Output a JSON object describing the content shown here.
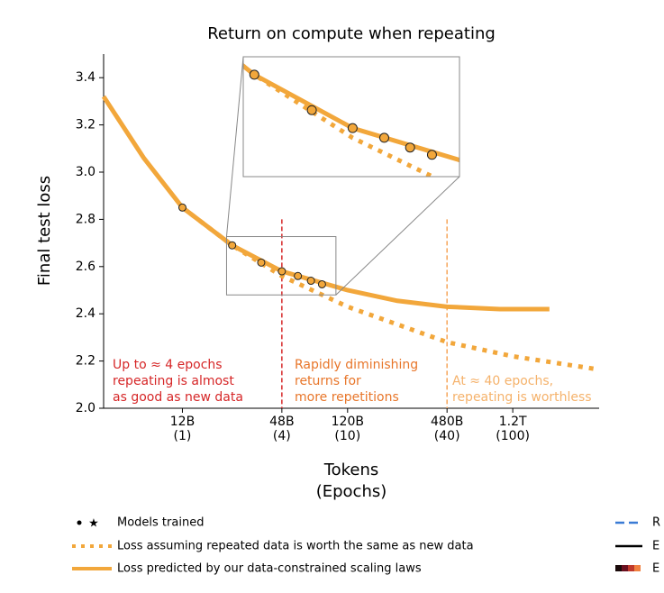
{
  "chart_data": {
    "type": "line",
    "title": "Return on compute when repeating",
    "ylabel": "Final test loss",
    "xlabel": [
      "Tokens",
      "(Epochs)"
    ],
    "xscale": "log",
    "xlim": [
      4000000000,
      4000000000000
    ],
    "ylim": [
      2.0,
      3.5
    ],
    "xticks": [
      {
        "value": 12000000000,
        "label": "12B",
        "epoch_label": "(1)"
      },
      {
        "value": 48000000000,
        "label": "48B",
        "epoch_label": "(4)"
      },
      {
        "value": 120000000000,
        "label": "120B",
        "epoch_label": "(10)"
      },
      {
        "value": 480000000000,
        "label": "480B",
        "epoch_label": "(40)"
      },
      {
        "value": 1200000000000,
        "label": "1.2T",
        "epoch_label": "(100)"
      }
    ],
    "yticks": [
      {
        "value": 2.0,
        "label": "2.0"
      },
      2.2,
      2.4,
      2.6,
      2.8,
      {
        "value": 3.0,
        "label": "3.0"
      },
      3.2,
      3.4
    ],
    "color": "#f2a73b",
    "series": [
      {
        "name": "Loss assuming repeated data is worth the same as new data",
        "style": "dotted",
        "x": [
          12000000000,
          24000000000,
          48000000000,
          120000000000,
          480000000000,
          1200000000000,
          3900000000000
        ],
        "values": [
          2.85,
          2.69,
          2.56,
          2.43,
          2.28,
          2.22,
          2.165
        ]
      },
      {
        "name": "Loss predicted by our data-constrained scaling laws",
        "style": "solid",
        "x": [
          4000000000,
          7000000000,
          12000000000,
          24000000000,
          48000000000,
          120000000000,
          240000000000,
          480000000000,
          1000000000000,
          2000000000000
        ],
        "values": [
          3.32,
          3.06,
          2.85,
          2.69,
          2.58,
          2.5,
          2.455,
          2.43,
          2.42,
          2.42
        ]
      }
    ],
    "points": {
      "name": "Models trained",
      "x": [
        12000000000,
        24000000000,
        36000000000,
        48000000000,
        60000000000,
        72000000000,
        84000000000
      ],
      "values": [
        2.85,
        2.69,
        2.617,
        2.58,
        2.56,
        2.54,
        2.525
      ]
    },
    "vlines": [
      {
        "x": 48000000000,
        "y": 2.8,
        "color": "#d62728"
      },
      {
        "x": 480000000000,
        "y": 2.8,
        "color": "#f5a55a"
      }
    ],
    "zoom": {
      "xlim": [
        22200000000,
        102000000000
      ],
      "ylim": [
        2.48,
        2.727
      ]
    },
    "annotations": [
      {
        "lines": [
          "Up to ≈ 4 epochs",
          "repeating is almost",
          "as good as new data"
        ],
        "color": "#d62728"
      },
      {
        "lines": [
          "Rapidly diminishing",
          "returns for",
          "more repetitions"
        ],
        "color": "#e8762a"
      },
      {
        "lines": [
          "At ≈ 40 epochs,",
          "repeating is worthless"
        ],
        "color": "#f5b26b"
      }
    ],
    "extra_legend": [
      "R",
      "E",
      "E"
    ]
  }
}
